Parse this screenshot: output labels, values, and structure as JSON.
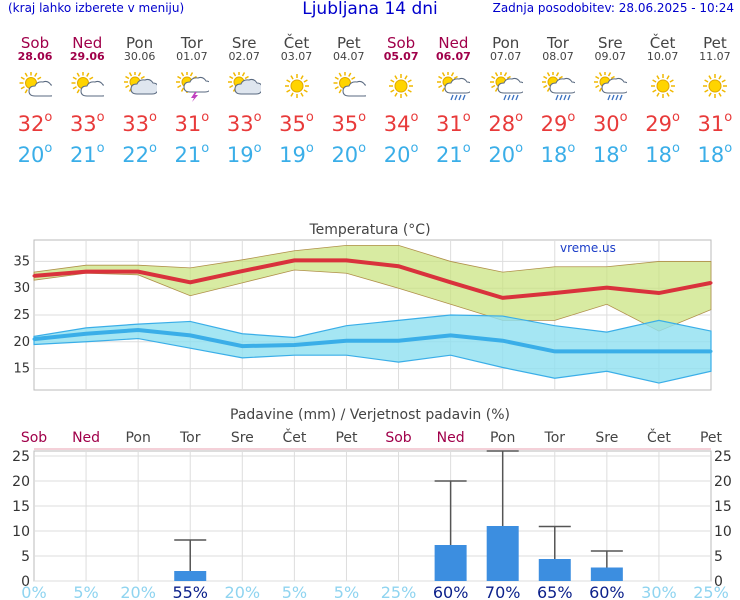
{
  "header": {
    "left": "(kraj lahko izberete v meniju)",
    "title": "Ljubljana 14 dni",
    "right": "Zadnja posodobitev: 28.06.2025 - 10:24"
  },
  "days": [
    {
      "name": "Sob",
      "date": "28.06",
      "weekend": true,
      "icon": "sun-cloud-icon",
      "tmax": "32",
      "tmin": "20"
    },
    {
      "name": "Ned",
      "date": "29.06",
      "weekend": true,
      "icon": "sun-cloud-icon",
      "tmax": "33",
      "tmin": "21"
    },
    {
      "name": "Pon",
      "date": "30.06",
      "weekend": false,
      "icon": "cloudy-sun-icon",
      "tmax": "33",
      "tmin": "22"
    },
    {
      "name": "Tor",
      "date": "01.07",
      "weekend": false,
      "icon": "thunderstorm-icon",
      "tmax": "31",
      "tmin": "21"
    },
    {
      "name": "Sre",
      "date": "02.07",
      "weekend": false,
      "icon": "cloudy-sun-icon",
      "tmax": "33",
      "tmin": "19"
    },
    {
      "name": "Čet",
      "date": "03.07",
      "weekend": false,
      "icon": "sun-icon",
      "tmax": "35",
      "tmin": "19"
    },
    {
      "name": "Pet",
      "date": "04.07",
      "weekend": false,
      "icon": "sun-cloud-icon",
      "tmax": "35",
      "tmin": "20"
    },
    {
      "name": "Sob",
      "date": "05.07",
      "weekend": true,
      "icon": "sun-icon",
      "tmax": "34",
      "tmin": "20"
    },
    {
      "name": "Ned",
      "date": "06.07",
      "weekend": true,
      "icon": "sun-rain-icon",
      "tmax": "31",
      "tmin": "21"
    },
    {
      "name": "Pon",
      "date": "07.07",
      "weekend": false,
      "icon": "sun-rain-icon",
      "tmax": "28",
      "tmin": "20"
    },
    {
      "name": "Tor",
      "date": "08.07",
      "weekend": false,
      "icon": "sun-rain-icon",
      "tmax": "29",
      "tmin": "18"
    },
    {
      "name": "Sre",
      "date": "09.07",
      "weekend": false,
      "icon": "sun-rain-icon",
      "tmax": "30",
      "tmin": "18"
    },
    {
      "name": "Čet",
      "date": "10.07",
      "weekend": false,
      "icon": "sun-icon",
      "tmax": "29",
      "tmin": "18"
    },
    {
      "name": "Pet",
      "date": "11.07",
      "weekend": false,
      "icon": "sun-icon",
      "tmax": "31",
      "tmin": "18"
    }
  ],
  "chart_data": [
    {
      "type": "line",
      "title": "Temperatura (°C)",
      "watermark": "vreme.us",
      "ylim": [
        11,
        39
      ],
      "yticks": [
        15,
        20,
        25,
        30,
        35
      ],
      "grid": true,
      "x": [
        "Sob",
        "Ned",
        "Pon",
        "Tor",
        "Sre",
        "Čet",
        "Pet",
        "Sob",
        "Ned",
        "Pon",
        "Tor",
        "Sre",
        "Čet",
        "Pet"
      ],
      "series": [
        {
          "values": [
            32.3,
            33.1,
            33.1,
            31.1,
            33.2,
            35.2,
            35.2,
            34.1,
            31.1,
            28.2,
            29.1,
            30.1,
            29.1,
            31.0
          ],
          "band_low": [
            31.5,
            32.8,
            32.5,
            28.6,
            31.0,
            33.4,
            32.8,
            30.0,
            27.0,
            24.0,
            24.0,
            27.0,
            22.0,
            26.0
          ],
          "band_high": [
            33.0,
            34.3,
            34.3,
            33.8,
            35.3,
            37.0,
            38.0,
            38.0,
            35.0,
            33.0,
            34.0,
            34.0,
            35.0,
            35.0
          ],
          "color": "#d9323c"
        },
        {
          "values": [
            20.5,
            21.5,
            22.2,
            21.2,
            19.2,
            19.4,
            20.2,
            20.2,
            21.2,
            20.2,
            18.2,
            18.2,
            18.2,
            18.2
          ],
          "band_low": [
            19.5,
            20.0,
            20.6,
            18.8,
            17.0,
            17.5,
            17.5,
            16.2,
            17.5,
            15.2,
            13.2,
            14.5,
            12.3,
            14.5
          ],
          "band_high": [
            21.0,
            22.6,
            23.3,
            23.8,
            21.5,
            20.8,
            23.0,
            24.0,
            25.0,
            24.8,
            23.0,
            21.8,
            24.0,
            22.0
          ],
          "color": "#3aaee8"
        }
      ]
    },
    {
      "type": "bar",
      "title": "Padavine (mm) / Verjetnost padavin (%)",
      "ylim": [
        0,
        26
      ],
      "yticks": [
        0,
        5,
        10,
        15,
        20,
        25
      ],
      "categories": [
        "Sob",
        "Ned",
        "Pon",
        "Tor",
        "Sre",
        "Čet",
        "Pet",
        "Sob",
        "Ned",
        "Pon",
        "Tor",
        "Sre",
        "Čet",
        "Pet"
      ],
      "values": [
        0,
        0,
        0,
        2.0,
        0,
        0,
        0,
        0,
        7.2,
        11.0,
        4.4,
        2.7,
        0,
        0
      ],
      "error_high": [
        null,
        null,
        null,
        8.2,
        null,
        null,
        null,
        null,
        20.0,
        26.0,
        10.9,
        6.0,
        null,
        null
      ],
      "probability": [
        "0%",
        "5%",
        "20%",
        "55%",
        "20%",
        "5%",
        "5%",
        "25%",
        "60%",
        "70%",
        "65%",
        "60%",
        "30%",
        "25%"
      ],
      "bar_color": "#3c8ee0"
    }
  ]
}
